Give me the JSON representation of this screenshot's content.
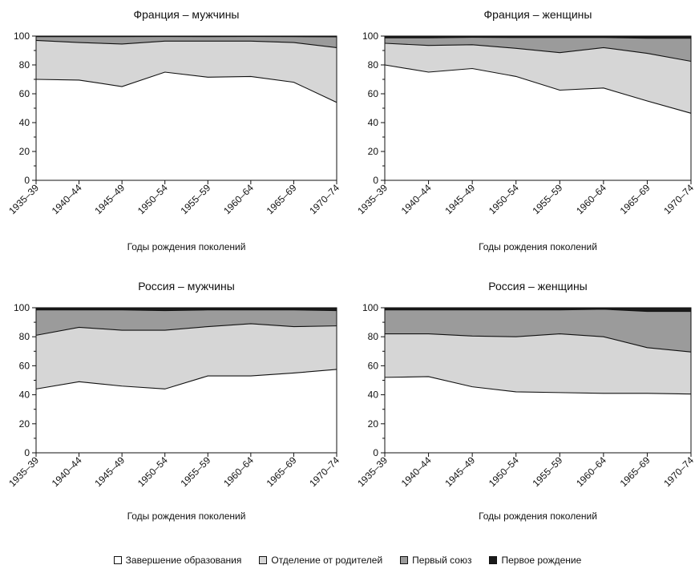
{
  "chart_data": [
    {
      "type": "area",
      "title": "Франция – мужчины",
      "xlabel": "Годы рождения поколений",
      "ylabel": "",
      "ylim": [
        0,
        100
      ],
      "yticks": [
        "0",
        "20",
        "40",
        "60",
        "80",
        "100"
      ],
      "categories": [
        "1935–39",
        "1940–44",
        "1945–49",
        "1950–54",
        "1955–59",
        "1960–64",
        "1965–69",
        "1970–74"
      ],
      "series": [
        {
          "name": "Завершение образования",
          "values": [
            70,
            69.5,
            65,
            75,
            71.5,
            72,
            68,
            54
          ]
        },
        {
          "name": "Отделение от родителей",
          "values": [
            27,
            26,
            29.5,
            21.5,
            25,
            24.5,
            27.5,
            38
          ]
        },
        {
          "name": "Первый союз",
          "values": [
            2.6,
            4.1,
            5.1,
            3.2,
            3.1,
            3.2,
            4.1,
            7.5
          ]
        },
        {
          "name": "Первое рождение",
          "values": [
            0.4,
            0.4,
            0.4,
            0.3,
            0.4,
            0.3,
            0.4,
            0.5
          ]
        }
      ]
    },
    {
      "type": "area",
      "title": "Франция – женщины",
      "xlabel": "Годы рождения поколений",
      "ylabel": "",
      "ylim": [
        0,
        100
      ],
      "yticks": [
        "0",
        "20",
        "40",
        "60",
        "80",
        "100"
      ],
      "categories": [
        "1935–39",
        "1940–44",
        "1945–49",
        "1950–54",
        "1955–59",
        "1960–64",
        "1965–69",
        "1970–74"
      ],
      "series": [
        {
          "name": "Завершение образования",
          "values": [
            80,
            75,
            77.5,
            72,
            62.5,
            64,
            55,
            46.5
          ]
        },
        {
          "name": "Отделение от родителей",
          "values": [
            15,
            18.5,
            16.5,
            19.5,
            26,
            28,
            33,
            36
          ]
        },
        {
          "name": "Первый союз",
          "values": [
            3.8,
            5.3,
            5.1,
            7.5,
            10.5,
            7,
            10.5,
            16
          ]
        },
        {
          "name": "Первое рождение",
          "values": [
            1.2,
            1.2,
            0.9,
            1,
            1,
            1,
            1.5,
            1.5
          ]
        }
      ]
    },
    {
      "type": "area",
      "title": "Россия – мужчины",
      "xlabel": "Годы рождения поколений",
      "ylabel": "",
      "ylim": [
        0,
        100
      ],
      "yticks": [
        "0",
        "20",
        "40",
        "60",
        "80",
        "100"
      ],
      "categories": [
        "1935–39",
        "1940–44",
        "1945–49",
        "1950–54",
        "1955–59",
        "1960–64",
        "1965–69",
        "1970–74"
      ],
      "series": [
        {
          "name": "Завершение образования",
          "values": [
            44,
            49,
            46,
            44,
            53,
            53,
            55,
            57.5
          ]
        },
        {
          "name": "Отделение от родителей",
          "values": [
            37,
            37.5,
            38.5,
            40.5,
            34,
            36,
            32,
            30
          ]
        },
        {
          "name": "Первый союз",
          "values": [
            17.5,
            12,
            14,
            13.5,
            11.5,
            9.5,
            11.5,
            10.5
          ]
        },
        {
          "name": "Первое рождение",
          "values": [
            1.5,
            1.5,
            1.5,
            2,
            1.5,
            1.5,
            1.5,
            2
          ]
        }
      ]
    },
    {
      "type": "area",
      "title": "Россия – женщины",
      "xlabel": "Годы рождения поколений",
      "ylabel": "",
      "ylim": [
        0,
        100
      ],
      "yticks": [
        "0",
        "20",
        "40",
        "60",
        "80",
        "100"
      ],
      "categories": [
        "1935–39",
        "1940–44",
        "1945–49",
        "1950–54",
        "1955–59",
        "1960–64",
        "1965–69",
        "1970–74"
      ],
      "series": [
        {
          "name": "Завершение образования",
          "values": [
            52,
            52.5,
            45.5,
            42,
            41.5,
            41,
            41,
            40.5
          ]
        },
        {
          "name": "Отделение от родителей",
          "values": [
            30,
            29.5,
            35,
            38,
            40.5,
            39,
            31.5,
            29
          ]
        },
        {
          "name": "Первый союз",
          "values": [
            16.5,
            16.5,
            18,
            18.5,
            16.5,
            19,
            25,
            28
          ]
        },
        {
          "name": "Первое рождение",
          "values": [
            1.5,
            1.5,
            1.5,
            1.5,
            1.5,
            1,
            2.5,
            2.5
          ]
        }
      ]
    }
  ],
  "legend": {
    "position": "bottom-center",
    "items": [
      {
        "label": "Завершение образования",
        "color": "#ffffff"
      },
      {
        "label": "Отделение от родителей",
        "color": "#d6d6d6"
      },
      {
        "label": "Первый союз",
        "color": "#9b9b9b"
      },
      {
        "label": "Первое рождение",
        "color": "#1a1a1a"
      }
    ]
  },
  "colors": {
    "series": [
      "#ffffff",
      "#d6d6d6",
      "#9b9b9b",
      "#1a1a1a"
    ],
    "line": "#111111"
  }
}
